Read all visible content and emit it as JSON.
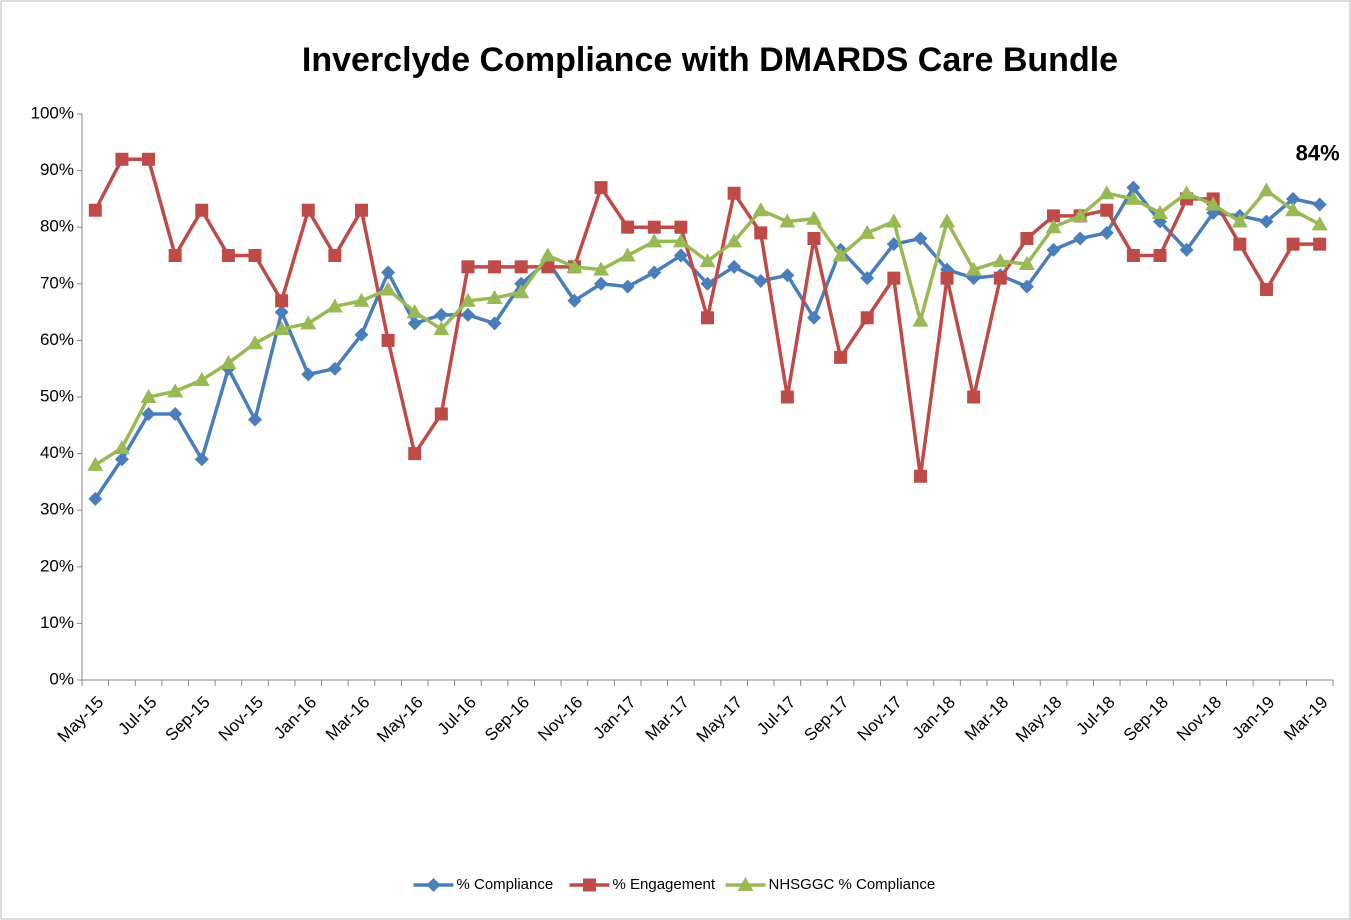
{
  "chart_data": {
    "type": "line",
    "title": "Inverclyde Compliance with DMARDS Care Bundle",
    "categories": [
      "May-15",
      null,
      "Jul-15",
      null,
      "Sep-15",
      null,
      "Nov-15",
      null,
      "Jan-16",
      null,
      "Mar-16",
      null,
      "May-16",
      null,
      "Jul-16",
      null,
      "Sep-16",
      null,
      "Nov-16",
      null,
      "Jan-17",
      null,
      "Mar-17",
      null,
      "May-17",
      null,
      "Jul-17",
      null,
      "Sep-17",
      null,
      "Nov-17",
      null,
      "Jan-18",
      null,
      "Mar-18",
      null,
      "May-18",
      null,
      "Jul-18",
      null,
      "Sep-18",
      null,
      "Nov-18",
      null,
      "Jan-19",
      null,
      "Mar-19"
    ],
    "series": [
      {
        "name": "% Compliance",
        "color": "#4a7ebb",
        "marker": "diamond",
        "values": [
          32,
          39,
          47,
          47,
          39,
          55,
          46,
          65,
          54,
          55,
          61,
          72,
          63,
          64.5,
          64.5,
          63,
          70,
          74,
          67,
          70,
          69.5,
          72,
          75,
          70,
          73,
          70.5,
          71.5,
          64,
          76,
          71,
          77,
          78,
          72.5,
          71,
          71.5,
          69.5,
          76,
          78,
          79,
          87,
          81,
          76,
          82.5,
          82,
          81,
          85,
          84
        ],
        "value_labels": [
          null,
          null,
          null,
          null,
          null,
          null,
          null,
          null,
          null,
          null,
          null,
          null,
          null,
          null,
          null,
          null,
          null,
          null,
          null,
          null,
          null,
          null,
          null,
          null,
          null,
          null,
          null,
          null,
          null,
          null,
          null,
          null,
          null,
          null,
          null,
          null,
          null,
          null,
          null,
          null,
          null,
          null,
          null,
          null,
          null,
          null,
          "84%"
        ]
      },
      {
        "name": "% Engagement",
        "color": "#be4b48",
        "marker": "square",
        "values": [
          83,
          92,
          92,
          75,
          83,
          75,
          75,
          67,
          83,
          75,
          83,
          60,
          40,
          47,
          73,
          73,
          73,
          73,
          73,
          87,
          80,
          80,
          80,
          64,
          86,
          79,
          50,
          78,
          57,
          64,
          71,
          36,
          71,
          50,
          71,
          78,
          82,
          82,
          83,
          75,
          75,
          85,
          85,
          77,
          69,
          77,
          77
        ]
      },
      {
        "name": "NHSGGC % Compliance",
        "color": "#98b954",
        "marker": "triangle",
        "values": [
          38,
          41,
          50,
          51,
          53,
          56,
          59.5,
          62,
          63,
          66,
          67,
          69,
          65,
          62,
          67,
          67.5,
          68.5,
          75,
          73,
          72.5,
          75,
          77.5,
          77.5,
          74,
          77.5,
          83,
          81,
          81.5,
          75,
          79,
          81,
          63.5,
          81,
          72.5,
          74,
          73.5,
          80,
          82,
          86,
          85,
          82.5,
          86,
          84,
          81,
          86.5,
          83,
          80.5
        ]
      }
    ],
    "ylim": [
      0,
      100
    ],
    "yticks": [
      {
        "value": 0,
        "label": "0%"
      },
      {
        "value": 10,
        "label": "10%"
      },
      {
        "value": 20,
        "label": "20%"
      },
      {
        "value": 30,
        "label": "30%"
      },
      {
        "value": 40,
        "label": "40%"
      },
      {
        "value": 50,
        "label": "50%"
      },
      {
        "value": 60,
        "label": "60%"
      },
      {
        "value": 70,
        "label": "70%"
      },
      {
        "value": 80,
        "label": "80%"
      },
      {
        "value": 90,
        "label": "90%"
      },
      {
        "value": 100,
        "label": "100%"
      }
    ],
    "grid": false,
    "legend": "bottom"
  }
}
